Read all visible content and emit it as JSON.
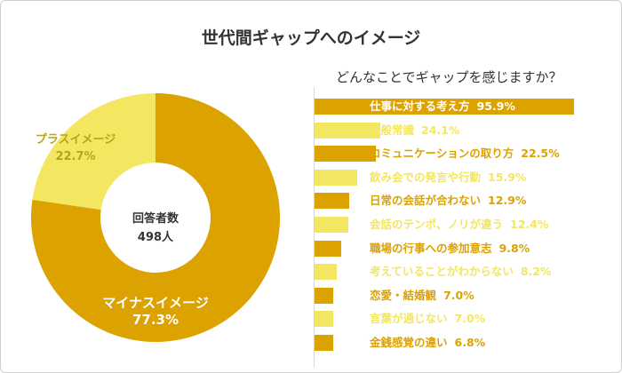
{
  "title": "世代間ギャップへのイメージ",
  "colors": {
    "dark": "#DBA200",
    "light": "#F3E661",
    "dark_text": "#ffffff",
    "light_text": "#B8A416",
    "center_text": "#333333"
  },
  "chart_data": [
    {
      "type": "pie",
      "center_label": "回答者数",
      "center_value": "498人",
      "slices": [
        {
          "label": "マイナスイメージ",
          "value_label": "77.3%",
          "value": 77.3,
          "color": "#DBA200"
        },
        {
          "label": "プラスイメージ",
          "value_label": "22.7%",
          "value": 22.7,
          "color": "#F3E661"
        }
      ]
    },
    {
      "type": "bar",
      "orientation": "horizontal",
      "title": "どんなことでギャップを感じますか？",
      "xlim": [
        0,
        100
      ],
      "categories": [
        "仕事に対する考え方",
        "一般常識",
        "コミュニケーションの取り方",
        "飲み会での発言や行動",
        "日常の会話が合わない",
        "会話のテンポ、ノリが違う",
        "職場の行事への参加意志",
        "考えていることがわからない",
        "恋愛・結婚観",
        "言葉が通じない",
        "金銭感覚の違い"
      ],
      "values": [
        95.9,
        24.1,
        22.5,
        15.9,
        12.9,
        12.4,
        9.8,
        8.2,
        7.0,
        7.0,
        6.8
      ],
      "value_labels": [
        "95.9%",
        "24.1%",
        "22.5%",
        "15.9%",
        "12.9%",
        "12.4%",
        "9.8%",
        "8.2%",
        "7.0%",
        "7.0%",
        "6.8%"
      ],
      "bar_colors": [
        "#DBA200",
        "#F3E661",
        "#DBA200",
        "#F3E661",
        "#DBA200",
        "#F3E661",
        "#DBA200",
        "#F3E661",
        "#DBA200",
        "#F3E661",
        "#DBA200"
      ]
    }
  ]
}
